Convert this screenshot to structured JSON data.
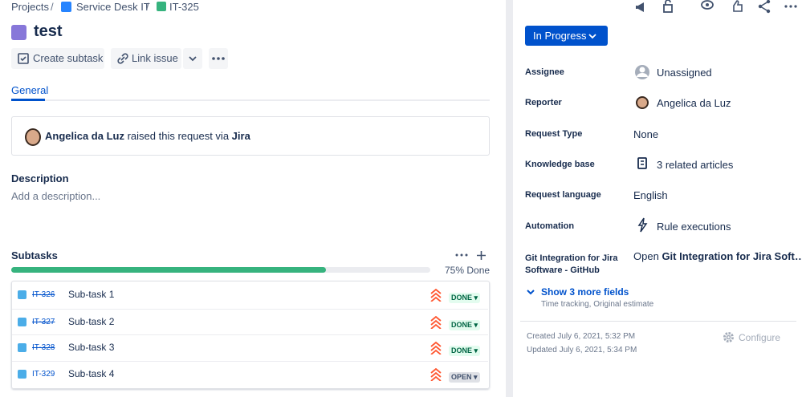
{
  "breadcrumbs": {
    "items": [
      "Projects",
      "Service Desk IT",
      "IT-325"
    ],
    "separator": "/"
  },
  "issue": {
    "title": "test"
  },
  "actions": {
    "create_subtask": "Create subtask",
    "link_issue": "Link issue"
  },
  "tabs": [
    "General"
  ],
  "request": {
    "reporter": "Angelica da Luz",
    "text": "raised this request via",
    "channel": "Jira"
  },
  "description": {
    "heading": "Description",
    "placeholder": "Add a description..."
  },
  "subtasks": {
    "heading": "Subtasks",
    "progress": {
      "value": 75,
      "label": "75% Done"
    },
    "rows": [
      {
        "key": "IT-326",
        "summary": "Sub-task 1",
        "status": "DONE",
        "done": true
      },
      {
        "key": "IT-327",
        "summary": "Sub-task 2",
        "status": "DONE",
        "done": true
      },
      {
        "key": "IT-328",
        "summary": "Sub-task 3",
        "status": "DONE",
        "done": true
      },
      {
        "key": "IT-329",
        "summary": "Sub-task 4",
        "status": "OPEN",
        "done": false
      }
    ]
  },
  "sidebar": {
    "status": "In Progress",
    "fields": [
      {
        "label": "Assignee",
        "value": "Unassigned"
      },
      {
        "label": "Reporter",
        "value": "Angelica da Luz"
      },
      {
        "label": "Request Type",
        "value": "None"
      },
      {
        "label": "Knowledge base",
        "value": "3 related articles"
      },
      {
        "label": "Request language",
        "value": "English"
      },
      {
        "label": "Automation",
        "value": "Rule executions"
      }
    ],
    "git": {
      "label": "Git Integration for Jira Software - GitHub",
      "prefix": "Open",
      "value": "Git Integration for Jira Soft…"
    },
    "more": {
      "link": "Show 3 more fields",
      "hint": "Time tracking, Original estimate"
    },
    "created": "Created July 6, 2021, 5:32 PM",
    "updated": "Updated July 6, 2021, 5:34 PM",
    "configure": "Configure"
  }
}
